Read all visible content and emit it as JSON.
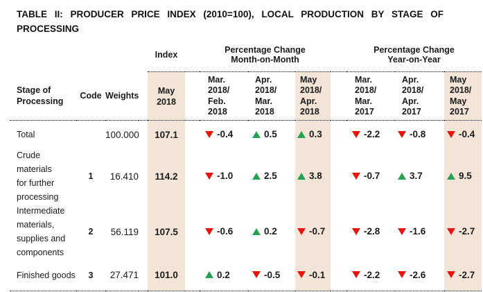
{
  "title": {
    "line1": "TABLE II: PRODUCER PRICE INDEX (2010=100), LOCAL PRODUCTION BY STAGE OF",
    "line2": "PROCESSING"
  },
  "colors": {
    "highlight": "#f2e4d6",
    "down": "#e81309",
    "up": "#28a052"
  },
  "header": {
    "index_group": "Index",
    "mom_group": "Percentage Change\nMonth-on-Month",
    "yoy_group": "Percentage Change\nYear-on-Year",
    "stage": "Stage of\nProcessing",
    "code": "Code",
    "weights": "Weights",
    "index_period": "May\n2018",
    "mom_periods": [
      "Mar.\n2018/\nFeb.\n2018",
      "Apr.\n2018/\nMar.\n2018",
      "May\n2018/\nApr.\n2018"
    ],
    "yoy_periods": [
      "Mar.\n2018/\nMar.\n2017",
      "Apr.\n2018/\nApr.\n2017",
      "May\n2018/\nMay\n2017"
    ]
  },
  "rows": [
    {
      "stage": "Total",
      "code": "",
      "weights": "100.000",
      "index": "107.1",
      "mom": [
        {
          "dir": "down",
          "value": "-0.4"
        },
        {
          "dir": "up",
          "value": "0.5"
        },
        {
          "dir": "up",
          "value": "0.3"
        }
      ],
      "yoy": [
        {
          "dir": "down",
          "value": "-2.2"
        },
        {
          "dir": "down",
          "value": "-0.8"
        },
        {
          "dir": "down",
          "value": "-0.4"
        }
      ]
    },
    {
      "stage": "Crude materials\nfor further\nprocessing",
      "code": "1",
      "weights": "16.410",
      "index": "114.2",
      "mom": [
        {
          "dir": "down",
          "value": "-1.0"
        },
        {
          "dir": "up",
          "value": "2.5"
        },
        {
          "dir": "up",
          "value": "3.8"
        }
      ],
      "yoy": [
        {
          "dir": "down",
          "value": "-0.7"
        },
        {
          "dir": "up",
          "value": "3.7"
        },
        {
          "dir": "up",
          "value": "9.5"
        }
      ]
    },
    {
      "stage": "Intermediate\nmaterials,\nsupplies and\ncomponents",
      "code": "2",
      "weights": "56.119",
      "index": "107.5",
      "mom": [
        {
          "dir": "down",
          "value": "-0.6"
        },
        {
          "dir": "up",
          "value": "0.2"
        },
        {
          "dir": "down",
          "value": "-0.7"
        }
      ],
      "yoy": [
        {
          "dir": "down",
          "value": "-2.8"
        },
        {
          "dir": "down",
          "value": "-1.6"
        },
        {
          "dir": "down",
          "value": "-2.7"
        }
      ]
    },
    {
      "stage": "Finished goods",
      "code": "3",
      "weights": "27.471",
      "index": "101.0",
      "mom": [
        {
          "dir": "up",
          "value": "0.2"
        },
        {
          "dir": "down",
          "value": "-0.5"
        },
        {
          "dir": "down",
          "value": "-0.1"
        }
      ],
      "yoy": [
        {
          "dir": "down",
          "value": "-2.2"
        },
        {
          "dir": "down",
          "value": "-2.6"
        },
        {
          "dir": "down",
          "value": "-2.7"
        }
      ]
    }
  ]
}
